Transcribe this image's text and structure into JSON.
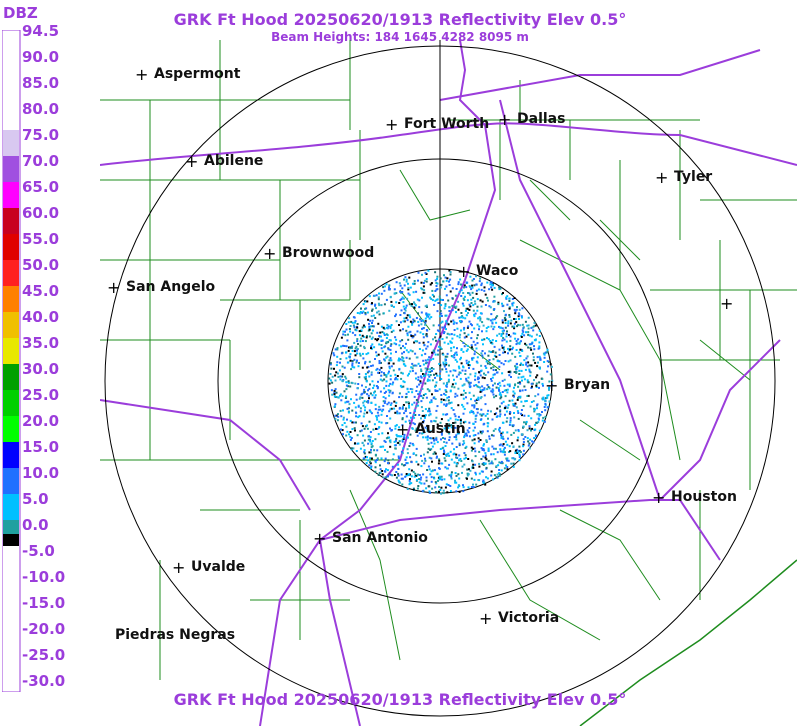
{
  "title": "GRK Ft Hood 20250620/1913 Reflectivity Elev 0.5°",
  "subtitle": "Beam Heights: 184 1645 4282 8095 m",
  "legend": {
    "unit": "DBZ",
    "labels": [
      "94.5",
      "90.0",
      "85.0",
      "80.0",
      "75.0",
      "70.0",
      "65.0",
      "60.0",
      "55.0",
      "50.0",
      "45.0",
      "40.0",
      "35.0",
      "30.0",
      "25.0",
      "20.0",
      "15.0",
      "10.0",
      "5.0",
      "0.0",
      "-5.0",
      "-10.0",
      "-15.0",
      "-20.0",
      "-25.0",
      "-30.0"
    ]
  },
  "cities": [
    {
      "name": "Aspermont"
    },
    {
      "name": "Fort Worth"
    },
    {
      "name": "Dallas"
    },
    {
      "name": "Abilene"
    },
    {
      "name": "Tyler"
    },
    {
      "name": "Brownwood"
    },
    {
      "name": "Waco"
    },
    {
      "name": "San Angelo"
    },
    {
      "name": "Bryan"
    },
    {
      "name": "Austin"
    },
    {
      "name": "Houston"
    },
    {
      "name": "San Antonio"
    },
    {
      "name": "Uvalde"
    },
    {
      "name": "Victoria"
    },
    {
      "name": "Piedras Negras"
    }
  ],
  "colors": {
    "title": "#9b3ddb",
    "counties": "#1e8c1e",
    "highways": "#9b3ddb",
    "rings": "#000000"
  }
}
